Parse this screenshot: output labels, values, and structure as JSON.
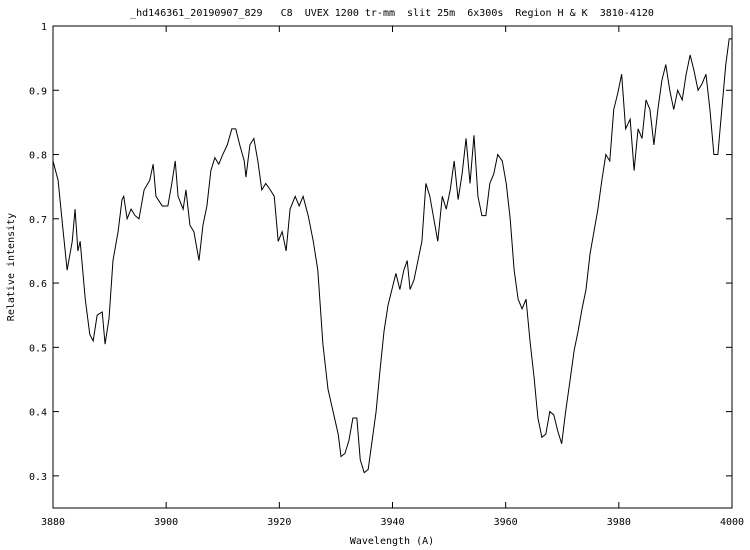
{
  "chart_data": {
    "type": "line",
    "title": "_hd146361_20190907_829   C8  UVEX 1200 tr-mm  slit 25m  6x300s  Region H & K  3810-4120",
    "x_label": "Wavelength (A)",
    "y_label": "Relative intensity",
    "xlim": [
      3880,
      4000
    ],
    "ylim": [
      0.25,
      1
    ],
    "xticks": [
      3880,
      3900,
      3920,
      3940,
      3960,
      3980,
      4000
    ],
    "yticks": [
      0.3,
      0.4,
      0.5,
      0.6,
      0.7,
      0.8,
      0.9,
      1
    ],
    "color": "#000000",
    "x": [
      3880,
      3880.9,
      3881.8,
      3882.5,
      3883.4,
      3883.9,
      3884.4,
      3884.8,
      3885.7,
      3886.5,
      3887.1,
      3887.8,
      3888.7,
      3889.2,
      3889.9,
      3890.6,
      3891.5,
      3892.2,
      3892.5,
      3893.1,
      3893.8,
      3894.5,
      3895.2,
      3896.1,
      3897.1,
      3897.7,
      3898.2,
      3899.3,
      3900.3,
      3901,
      3901.6,
      3902.1,
      3903,
      3903.5,
      3904.2,
      3904.9,
      3905.8,
      3906.5,
      3907.2,
      3907.9,
      3908.6,
      3909.3,
      3910,
      3910.8,
      3911.6,
      3912.3,
      3913,
      3913.8,
      3914.1,
      3914.8,
      3915.5,
      3916.2,
      3916.9,
      3917.6,
      3918.4,
      3919.1,
      3919.8,
      3920.5,
      3921.2,
      3921.9,
      3922.8,
      3923.5,
      3924.2,
      3925.1,
      3926,
      3926.8,
      3927.7,
      3928.6,
      3929.5,
      3930.4,
      3930.9,
      3931.6,
      3932.3,
      3933,
      3933.7,
      3934.3,
      3935,
      3935.7,
      3936.4,
      3937.1,
      3937.8,
      3938.5,
      3939.2,
      3939.9,
      3940.6,
      3941.3,
      3942,
      3942.6,
      3943.1,
      3943.8,
      3944.5,
      3945.2,
      3945.9,
      3946.6,
      3947.3,
      3948,
      3948.8,
      3949.5,
      3950.2,
      3950.9,
      3951.6,
      3952.3,
      3953,
      3953.7,
      3954.4,
      3955.1,
      3955.8,
      3956.5,
      3957.2,
      3957.9,
      3958.6,
      3959.4,
      3960.1,
      3960.8,
      3961.5,
      3962.2,
      3962.9,
      3963.6,
      3964.3,
      3965,
      3965.7,
      3966.4,
      3967.1,
      3967.8,
      3968.5,
      3969.2,
      3969.9,
      3970.6,
      3971.4,
      3972.1,
      3972.8,
      3973.5,
      3974.2,
      3974.9,
      3975.6,
      3976.3,
      3977,
      3977.7,
      3978.4,
      3979.1,
      3979.8,
      3980.5,
      3981.2,
      3982,
      3982.7,
      3983.4,
      3984.1,
      3984.8,
      3985.5,
      3986.2,
      3986.9,
      3987.6,
      3988.3,
      3989,
      3989.7,
      3990.4,
      3991.2,
      3991.9,
      3992.6,
      3993.3,
      3994,
      3994.7,
      3995.4,
      3996.1,
      3996.8,
      3997.5,
      3998.2,
      3998.9,
      3999.5,
      4000
    ],
    "values": [
      0.79,
      0.76,
      0.68,
      0.62,
      0.665,
      0.715,
      0.65,
      0.665,
      0.575,
      0.52,
      0.51,
      0.55,
      0.555,
      0.505,
      0.545,
      0.635,
      0.68,
      0.73,
      0.735,
      0.7,
      0.715,
      0.705,
      0.7,
      0.745,
      0.76,
      0.785,
      0.735,
      0.72,
      0.72,
      0.755,
      0.79,
      0.735,
      0.715,
      0.745,
      0.69,
      0.68,
      0.635,
      0.69,
      0.72,
      0.775,
      0.795,
      0.785,
      0.8,
      0.815,
      0.84,
      0.84,
      0.815,
      0.79,
      0.765,
      0.815,
      0.825,
      0.79,
      0.745,
      0.755,
      0.745,
      0.735,
      0.665,
      0.68,
      0.65,
      0.715,
      0.735,
      0.72,
      0.735,
      0.705,
      0.665,
      0.62,
      0.505,
      0.435,
      0.4,
      0.365,
      0.33,
      0.335,
      0.355,
      0.39,
      0.39,
      0.325,
      0.305,
      0.31,
      0.355,
      0.4,
      0.465,
      0.525,
      0.565,
      0.59,
      0.615,
      0.59,
      0.62,
      0.635,
      0.59,
      0.605,
      0.635,
      0.665,
      0.755,
      0.735,
      0.7,
      0.665,
      0.735,
      0.715,
      0.745,
      0.79,
      0.73,
      0.77,
      0.825,
      0.755,
      0.83,
      0.735,
      0.705,
      0.705,
      0.755,
      0.77,
      0.8,
      0.79,
      0.755,
      0.7,
      0.62,
      0.575,
      0.56,
      0.575,
      0.51,
      0.455,
      0.39,
      0.36,
      0.365,
      0.4,
      0.395,
      0.37,
      0.35,
      0.4,
      0.45,
      0.495,
      0.525,
      0.56,
      0.59,
      0.645,
      0.68,
      0.715,
      0.76,
      0.8,
      0.79,
      0.87,
      0.895,
      0.925,
      0.84,
      0.855,
      0.775,
      0.84,
      0.825,
      0.885,
      0.87,
      0.815,
      0.87,
      0.915,
      0.94,
      0.9,
      0.87,
      0.9,
      0.885,
      0.925,
      0.955,
      0.93,
      0.9,
      0.91,
      0.925,
      0.87,
      0.8,
      0.8,
      0.87,
      0.94,
      0.98,
      0.98
    ]
  }
}
